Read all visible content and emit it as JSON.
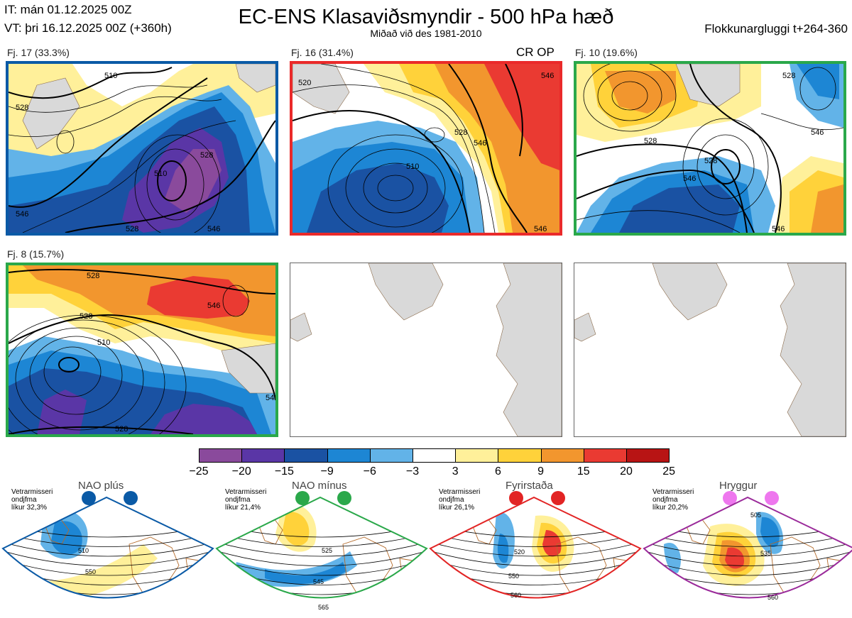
{
  "header": {
    "initial_time": "IT: mán 01.12.2025 00Z",
    "valid_time": "VT: þri 16.12.2025 00Z  (+360h)",
    "title": "EC-ENS Klasaviðsmyndir - 500 hPa hæð",
    "subtitle": "Miðað við des 1981-2010",
    "window": "Flokkunargluggi t+264-360"
  },
  "clusters": [
    {
      "label": "Fj. 17 (33.3%)",
      "border_color": "#0a5aa6",
      "contours": [
        "510",
        "528",
        "546",
        "510",
        "528",
        "528",
        "546"
      ]
    },
    {
      "label": "Fj. 16 (31.4%)",
      "border_color": "#ea2a2a",
      "tag": "CR OP",
      "contours": [
        "520",
        "546",
        "510",
        "528",
        "546",
        "546"
      ]
    },
    {
      "label": "Fj. 10 (19.6%)",
      "border_color": "#2aa84a",
      "contours": [
        "528",
        "546",
        "528",
        "546",
        "528",
        "546"
      ]
    },
    {
      "label": "Fj. 8 (15.7%)",
      "border_color": "#2aa84a",
      "contours": [
        "528",
        "546",
        "528",
        "510",
        "528",
        "546"
      ]
    }
  ],
  "colorbar": {
    "ticks": [
      "−25",
      "−20",
      "−15",
      "−9",
      "−6",
      "−3",
      "3",
      "6",
      "9",
      "15",
      "20",
      "25"
    ],
    "colors": [
      "#8a4a9c",
      "#5a36a6",
      "#1a52a3",
      "#1d86d4",
      "#62b3e8",
      "#ffffff",
      "#fff09a",
      "#ffd23a",
      "#f2962e",
      "#ea3a32",
      "#b81414"
    ]
  },
  "regimes": [
    {
      "name": "NAO plús",
      "desc": [
        "Vetrarmisseri",
        "ondjfma",
        "líkur 32,3%"
      ],
      "color": "#0a5aa6",
      "contours": [
        "510",
        "550"
      ]
    },
    {
      "name": "NAO mínus",
      "desc": [
        "Vetrarmisseri",
        "ondjfma",
        "líkur 21,4%"
      ],
      "color": "#2aa84a",
      "contours": [
        "525",
        "545",
        "565"
      ]
    },
    {
      "name": "Fyrirstaða",
      "desc": [
        "Vetrarmisseri",
        "ondjfma",
        "líkur 26,1%"
      ],
      "color": "#e22424",
      "contours": [
        "520",
        "550",
        "560"
      ]
    },
    {
      "name": "Hryggur",
      "desc": [
        "Vetrarmisseri",
        "ondjfma",
        "líkur 20,2%"
      ],
      "color": "#9a2a9a",
      "dot_color": "#ee77ee",
      "contours": [
        "505",
        "535",
        "560"
      ]
    }
  ]
}
